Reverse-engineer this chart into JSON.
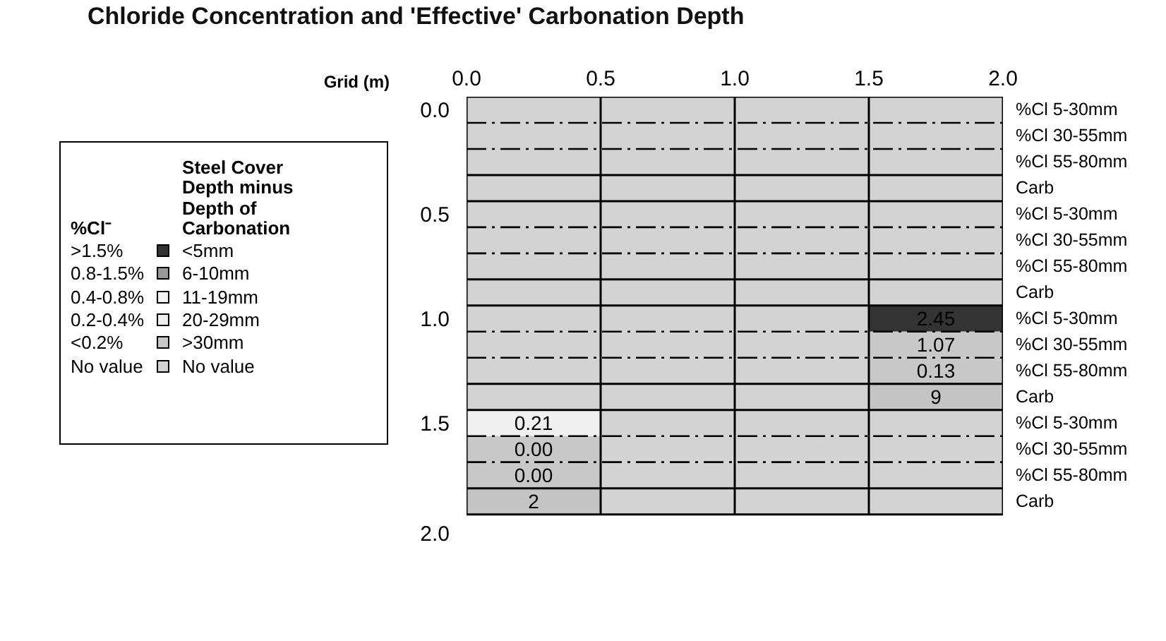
{
  "chart_data": {
    "type": "heatmap",
    "title": "Chloride Concentration and 'Effective' Carbonation Depth",
    "xlabel": "Grid (m)",
    "grid": true,
    "xlim": [
      0,
      2
    ],
    "xticks": [
      {
        "value": 0,
        "label": "0.0"
      },
      0.5,
      {
        "value": 1,
        "label": "1.0"
      },
      1.5,
      {
        "value": 2,
        "label": "2.0"
      }
    ],
    "y_categories": [
      "%Cl 5-30mm",
      "%Cl 30-55mm",
      "%Cl 55-80mm",
      "Carb",
      "%Cl 5-30mm",
      "%Cl 30-55mm",
      "%Cl 55-80mm",
      "Carb",
      "%Cl 5-30mm",
      "%Cl 30-55mm",
      "%Cl 55-80mm",
      "Carb",
      "%Cl 5-30mm",
      "%Cl 30-55mm",
      "%Cl 55-80mm",
      "Carb"
    ],
    "y2_categories": [
      "0.0",
      null,
      null,
      null,
      "0.5",
      null,
      null,
      null,
      "1.0",
      null,
      null,
      null,
      "1.5",
      null,
      null,
      null
    ],
    "cells": [
      [
        null,
        null,
        null,
        null
      ],
      [
        null,
        null,
        null,
        null
      ],
      [
        null,
        null,
        null,
        null
      ],
      [
        null,
        null,
        null,
        null
      ],
      [
        null,
        null,
        null,
        null
      ],
      [
        null,
        null,
        null,
        null
      ],
      [
        null,
        null,
        null,
        null
      ],
      [
        null,
        null,
        null,
        null
      ],
      [
        null,
        null,
        null,
        2.45
      ],
      [
        null,
        null,
        null,
        1.07
      ],
      [
        null,
        null,
        null,
        0.13
      ],
      [
        null,
        null,
        null,
        9
      ],
      [
        0.21,
        null,
        null,
        null
      ],
      [
        0.0,
        null,
        null,
        null
      ],
      [
        0.0,
        null,
        null,
        null
      ],
      [
        2,
        null,
        null,
        null
      ]
    ],
    "cell_labels": [
      [
        null,
        null,
        null,
        null
      ],
      [
        null,
        null,
        null,
        null
      ],
      [
        null,
        null,
        null,
        null
      ],
      [
        null,
        null,
        null,
        null
      ],
      [
        null,
        null,
        null,
        null
      ],
      [
        null,
        null,
        null,
        null
      ],
      [
        null,
        null,
        null,
        null
      ],
      [
        null,
        null,
        null,
        null
      ],
      [
        null,
        null,
        null,
        "2.45"
      ],
      [
        null,
        null,
        null,
        "1.07"
      ],
      [
        null,
        null,
        null,
        "0.13"
      ],
      [
        null,
        null,
        null,
        "9"
      ],
      [
        "0.21",
        null,
        null,
        null
      ],
      [
        "0.00",
        null,
        null,
        null
      ],
      [
        "0.00",
        null,
        null,
        null
      ],
      [
        "2",
        null,
        null,
        null
      ]
    ],
    "colors": [
      [
        "#d3d3d3",
        "#d3d3d3",
        "#d3d3d3",
        "#d3d3d3"
      ],
      [
        "#d3d3d3",
        "#d3d3d3",
        "#d3d3d3",
        "#d3d3d3"
      ],
      [
        "#d3d3d3",
        "#d3d3d3",
        "#d3d3d3",
        "#d3d3d3"
      ],
      [
        "#d3d3d3",
        "#d3d3d3",
        "#d3d3d3",
        "#d3d3d3"
      ],
      [
        "#d3d3d3",
        "#d3d3d3",
        "#d3d3d3",
        "#d3d3d3"
      ],
      [
        "#d3d3d3",
        "#d3d3d3",
        "#d3d3d3",
        "#d3d3d3"
      ],
      [
        "#d3d3d3",
        "#d3d3d3",
        "#d3d3d3",
        "#d3d3d3"
      ],
      [
        "#d3d3d3",
        "#d3d3d3",
        "#d3d3d3",
        "#d3d3d3"
      ],
      [
        "#d3d3d3",
        "#d3d3d3",
        "#d3d3d3",
        "#333333"
      ],
      [
        "#d3d3d3",
        "#d3d3d3",
        "#d3d3d3",
        "#c8c8c8"
      ],
      [
        "#d3d3d3",
        "#d3d3d3",
        "#d3d3d3",
        "#c8c8c8"
      ],
      [
        "#d3d3d3",
        "#d3d3d3",
        "#d3d3d3",
        "#c4c4c4"
      ],
      [
        "#f0f0f0",
        "#d3d3d3",
        "#d3d3d3",
        "#d3d3d3"
      ],
      [
        "#c8c8c8",
        "#d3d3d3",
        "#d3d3d3",
        "#d3d3d3"
      ],
      [
        "#c8c8c8",
        "#d3d3d3",
        "#d3d3d3",
        "#d3d3d3"
      ],
      [
        "#c4c4c4",
        "#d3d3d3",
        "#d3d3d3",
        "#d3d3d3"
      ]
    ],
    "annotations": [
      "%Cl⁻",
      "Steel Cover Depth minus Depth of Carbonation",
      ">1.5%",
      "<5mm",
      "0.8-1.5%",
      "6-10mm",
      "0.4-0.8%",
      "11-19mm",
      "0.2-0.4%",
      "20-29mm",
      "<0.2%",
      ">30mm",
      "No value",
      "No value",
      "2.0"
    ]
  }
}
